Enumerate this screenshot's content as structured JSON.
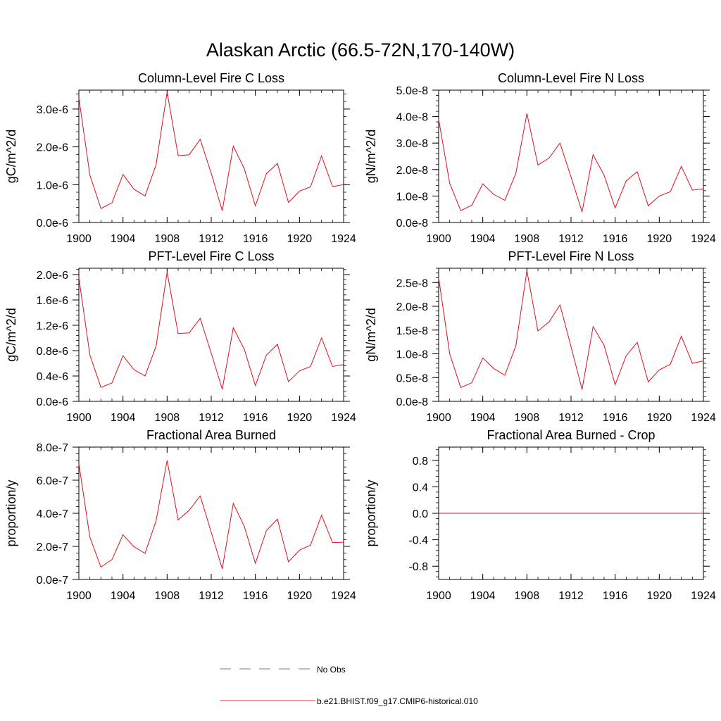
{
  "title": "Alaskan Arctic (66.5-72N,170-140W)",
  "legend": {
    "entries": [
      {
        "label": "No Obs",
        "color": "#7a7aa8",
        "style": "dashed"
      },
      {
        "label": "b.e21.BHIST.f09_g17.CMIP6-historical.010",
        "color": "#e8383d",
        "style": "solid"
      }
    ]
  },
  "colors": {
    "series": "#e0101a",
    "axis": "#000000"
  },
  "chart_data": [
    {
      "type": "line",
      "title": "Column-Level Fire C Loss",
      "ylabel": "gC/m^2/d",
      "x": [
        1900,
        1901,
        1902,
        1903,
        1904,
        1905,
        1906,
        1907,
        1908,
        1909,
        1910,
        1911,
        1912,
        1913,
        1914,
        1915,
        1916,
        1917,
        1918,
        1919,
        1920,
        1921,
        1922,
        1923,
        1924
      ],
      "xticks": [
        1900,
        1904,
        1908,
        1912,
        1916,
        1920,
        1924
      ],
      "xticklabels": [
        "1900",
        "1904",
        "1908",
        "1912",
        "1916",
        "1920",
        "1924"
      ],
      "xlim": [
        1900,
        1924
      ],
      "ylim": [
        0,
        3.5e-06
      ],
      "yticks": [
        0,
        1e-06,
        2e-06,
        3e-06
      ],
      "yticklabels": [
        "0.0e-6",
        "1.0e-6",
        "2.0e-6",
        "3.0e-6"
      ],
      "series": [
        {
          "values": [
            3.3e-06,
            1.25e-06,
            3.7e-07,
            5.2e-07,
            1.27e-06,
            8.8e-07,
            7e-07,
            1.53e-06,
            3.45e-06,
            1.77e-06,
            1.79e-06,
            2.2e-06,
            1.3e-06,
            3.1e-07,
            2.02e-06,
            1.42e-06,
            4.4e-07,
            1.29e-06,
            1.56e-06,
            5.3e-07,
            8.3e-07,
            9.4e-07,
            1.76e-06,
            9.5e-07,
            1e-06
          ]
        }
      ]
    },
    {
      "type": "line",
      "title": "Column-Level Fire N Loss",
      "ylabel": "gN/m^2/d",
      "x": [
        1900,
        1901,
        1902,
        1903,
        1904,
        1905,
        1906,
        1907,
        1908,
        1909,
        1910,
        1911,
        1912,
        1913,
        1914,
        1915,
        1916,
        1917,
        1918,
        1919,
        1920,
        1921,
        1922,
        1923,
        1924
      ],
      "xticks": [
        1900,
        1904,
        1908,
        1912,
        1916,
        1920,
        1924
      ],
      "xticklabels": [
        "1900",
        "1904",
        "1908",
        "1912",
        "1916",
        "1920",
        "1924"
      ],
      "xlim": [
        1900,
        1924
      ],
      "ylim": [
        0,
        5e-08
      ],
      "yticks": [
        0,
        1e-08,
        2e-08,
        3e-08,
        4e-08,
        5e-08
      ],
      "yticklabels": [
        "0.0e-8",
        "1.0e-8",
        "2.0e-8",
        "3.0e-8",
        "4.0e-8",
        "5.0e-8"
      ],
      "series": [
        {
          "values": [
            3.9e-08,
            1.48e-08,
            4.5e-09,
            6.5e-09,
            1.46e-08,
            1.06e-08,
            8.4e-09,
            1.86e-08,
            4.12e-08,
            2.17e-08,
            2.43e-08,
            3e-08,
            1.72e-08,
            4e-09,
            2.56e-08,
            1.78e-08,
            5.5e-09,
            1.57e-08,
            1.92e-08,
            6.3e-09,
            1e-08,
            1.16e-08,
            2.12e-08,
            1.22e-08,
            1.27e-08
          ]
        }
      ]
    },
    {
      "type": "line",
      "title": "PFT-Level Fire C Loss",
      "ylabel": "gC/m^2/d",
      "x": [
        1900,
        1901,
        1902,
        1903,
        1904,
        1905,
        1906,
        1907,
        1908,
        1909,
        1910,
        1911,
        1912,
        1913,
        1914,
        1915,
        1916,
        1917,
        1918,
        1919,
        1920,
        1921,
        1922,
        1923,
        1924
      ],
      "xticks": [
        1900,
        1904,
        1908,
        1912,
        1916,
        1920,
        1924
      ],
      "xticklabels": [
        "1900",
        "1904",
        "1908",
        "1912",
        "1916",
        "1920",
        "1924"
      ],
      "xlim": [
        1900,
        1924
      ],
      "ylim": [
        0,
        2.1e-06
      ],
      "yticks": [
        0,
        4e-07,
        8e-07,
        1.2e-06,
        1.6e-06,
        2e-06
      ],
      "yticklabels": [
        "0.0e-6",
        "0.4e-6",
        "0.8e-6",
        "1.2e-6",
        "1.6e-6",
        "2.0e-6"
      ],
      "series": [
        {
          "values": [
            1.95e-06,
            7.3e-07,
            2.2e-07,
            2.9e-07,
            7.2e-07,
            5e-07,
            4e-07,
            8.7e-07,
            2.04e-06,
            1.07e-06,
            1.08e-06,
            1.31e-06,
            7.6e-07,
            1.9e-07,
            1.16e-06,
            8.2e-07,
            2.5e-07,
            7.3e-07,
            9e-07,
            3.1e-07,
            4.8e-07,
            5.5e-07,
            1e-06,
            5.5e-07,
            5.8e-07
          ]
        }
      ]
    },
    {
      "type": "line",
      "title": "PFT-Level Fire N Loss",
      "ylabel": "gN/m^2/d",
      "x": [
        1900,
        1901,
        1902,
        1903,
        1904,
        1905,
        1906,
        1907,
        1908,
        1909,
        1910,
        1911,
        1912,
        1913,
        1914,
        1915,
        1916,
        1917,
        1918,
        1919,
        1920,
        1921,
        1922,
        1923,
        1924
      ],
      "xticks": [
        1900,
        1904,
        1908,
        1912,
        1916,
        1920,
        1924
      ],
      "xticklabels": [
        "1900",
        "1904",
        "1908",
        "1912",
        "1916",
        "1920",
        "1924"
      ],
      "xlim": [
        1900,
        1924
      ],
      "ylim": [
        0,
        2.8e-08
      ],
      "yticks": [
        0,
        5e-09,
        1e-08,
        1.5e-08,
        2e-08,
        2.5e-08
      ],
      "yticklabels": [
        "0.0e-8",
        "0.5e-8",
        "1.0e-8",
        "1.5e-8",
        "2.0e-8",
        "2.5e-8"
      ],
      "series": [
        {
          "values": [
            2.6e-08,
            1e-08,
            2.9e-09,
            3.9e-09,
            9.1e-09,
            6.9e-09,
            5.5e-09,
            1.17e-08,
            2.75e-08,
            1.48e-08,
            1.67e-08,
            2.03e-08,
            1.15e-08,
            2.5e-09,
            1.57e-08,
            1.18e-08,
            3.5e-09,
            9.6e-09,
            1.24e-08,
            4.1e-09,
            6.6e-09,
            7.8e-09,
            1.37e-08,
            8e-09,
            8.5e-09
          ]
        }
      ]
    },
    {
      "type": "line",
      "title": "Fractional Area Burned",
      "ylabel": "proportion/y",
      "x": [
        1900,
        1901,
        1902,
        1903,
        1904,
        1905,
        1906,
        1907,
        1908,
        1909,
        1910,
        1911,
        1912,
        1913,
        1914,
        1915,
        1916,
        1917,
        1918,
        1919,
        1920,
        1921,
        1922,
        1923,
        1924
      ],
      "xticks": [
        1900,
        1904,
        1908,
        1912,
        1916,
        1920,
        1924
      ],
      "xticklabels": [
        "1900",
        "1904",
        "1908",
        "1912",
        "1916",
        "1920",
        "1924"
      ],
      "xlim": [
        1900,
        1924
      ],
      "ylim": [
        0,
        8e-07
      ],
      "yticks": [
        0,
        2e-07,
        4e-07,
        6e-07,
        8e-07
      ],
      "yticklabels": [
        "0.0e-7",
        "2.0e-7",
        "4.0e-7",
        "6.0e-7",
        "8.0e-7"
      ],
      "series": [
        {
          "values": [
            7e-07,
            2.55e-07,
            7.5e-08,
            1.2e-07,
            2.7e-07,
            1.98e-07,
            1.58e-07,
            3.55e-07,
            7.2e-07,
            3.6e-07,
            4.18e-07,
            5.05e-07,
            2.85e-07,
            6.5e-08,
            4.6e-07,
            3.2e-07,
            9.8e-08,
            2.95e-07,
            3.65e-07,
            1.07e-07,
            1.77e-07,
            2.08e-07,
            3.88e-07,
            2.23e-07,
            2.25e-07
          ]
        }
      ]
    },
    {
      "type": "line",
      "title": "Fractional Area Burned - Crop",
      "ylabel": "proportion/y",
      "x": [
        1900,
        1901,
        1902,
        1903,
        1904,
        1905,
        1906,
        1907,
        1908,
        1909,
        1910,
        1911,
        1912,
        1913,
        1914,
        1915,
        1916,
        1917,
        1918,
        1919,
        1920,
        1921,
        1922,
        1923,
        1924
      ],
      "xticks": [
        1900,
        1904,
        1908,
        1912,
        1916,
        1920,
        1924
      ],
      "xticklabels": [
        "1900",
        "1904",
        "1908",
        "1912",
        "1916",
        "1920",
        "1924"
      ],
      "xlim": [
        1900,
        1924
      ],
      "ylim": [
        -1.0,
        1.0
      ],
      "yticks": [
        -0.8,
        -0.4,
        0.0,
        0.4,
        0.8
      ],
      "yticklabels": [
        "-0.8",
        "-0.4",
        "0.0",
        "0.4",
        "0.8"
      ],
      "series": [
        {
          "values": [
            0,
            0,
            0,
            0,
            0,
            0,
            0,
            0,
            0,
            0,
            0,
            0,
            0,
            0,
            0,
            0,
            0,
            0,
            0,
            0,
            0,
            0,
            0,
            0,
            0
          ]
        }
      ]
    }
  ]
}
